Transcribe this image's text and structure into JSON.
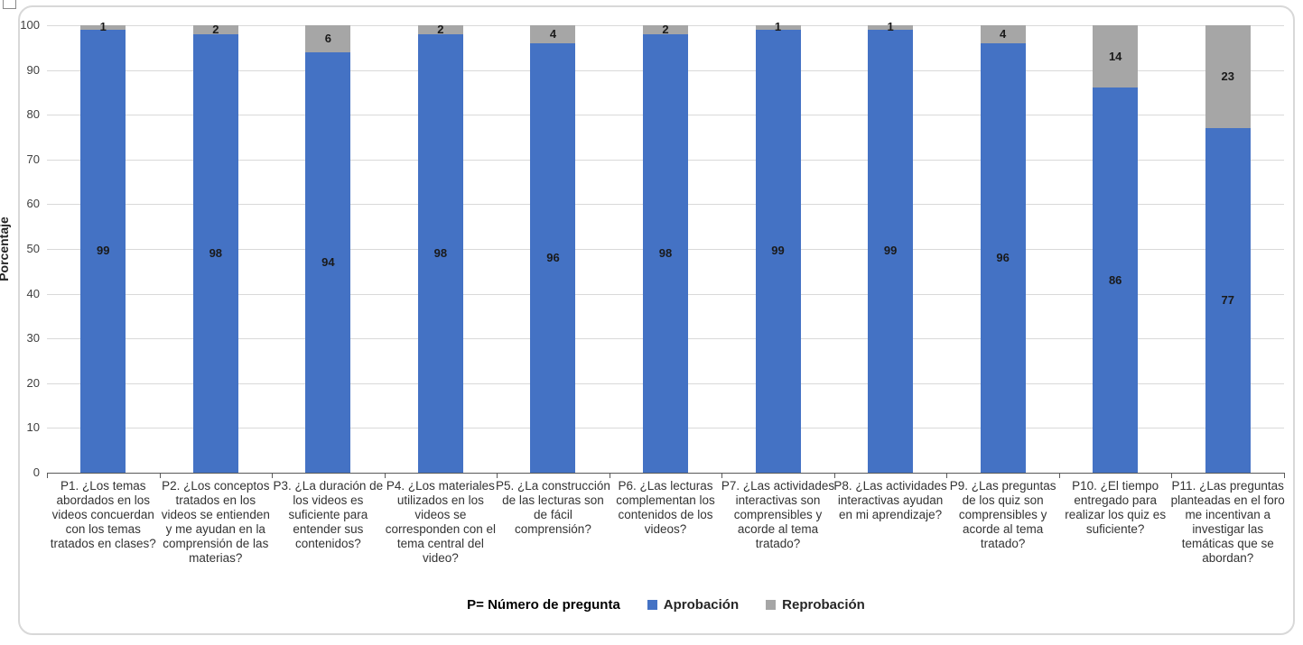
{
  "chart_data": {
    "type": "bar",
    "stacked": true,
    "orientation": "vertical",
    "title": "",
    "xlabel": "",
    "ylabel": "Porcentaje",
    "ylim": [
      0,
      100
    ],
    "ytick_step": 10,
    "grid": true,
    "legend_position": "bottom",
    "legend_note": "P= Número de pregunta",
    "categories": [
      "P1. ¿Los temas abordados en los videos concuerdan con los temas tratados en clases?",
      "P2. ¿Los conceptos tratados en los videos se entienden y me ayudan en la comprensión de las materias?",
      "P3. ¿La duración de los videos es suficiente para entender sus contenidos?",
      "P4. ¿Los materiales utilizados en los videos se corresponden con el tema central del video?",
      "P5. ¿La construcción de las lecturas son de fácil comprensión?",
      "P6. ¿Las lecturas complementan los contenidos de los videos?",
      "P7. ¿Las actividades interactivas son comprensibles y acorde al tema tratado?",
      "P8. ¿Las actividades interactivas ayudan en mi aprendizaje?",
      "P9. ¿Las preguntas de los quiz son comprensibles y acorde al tema tratado?",
      "P10. ¿El tiempo entregado para realizar los quiz es suficiente?",
      "P11. ¿Las preguntas planteadas en el foro me incentivan a investigar las temáticas que se abordan?"
    ],
    "series": [
      {
        "name": "Aprobación",
        "color": "#4472C4",
        "values": [
          99,
          98,
          94,
          98,
          96,
          98,
          99,
          99,
          96,
          86,
          77
        ]
      },
      {
        "name": "Reprobación",
        "color": "#A6A6A6",
        "values": [
          1,
          2,
          6,
          2,
          4,
          2,
          1,
          1,
          4,
          14,
          23
        ]
      }
    ]
  },
  "colors": {
    "gridline": "#d9d9d9",
    "axis": "#595959",
    "frame_border": "#d8d8d8",
    "label_text": "#333333"
  }
}
